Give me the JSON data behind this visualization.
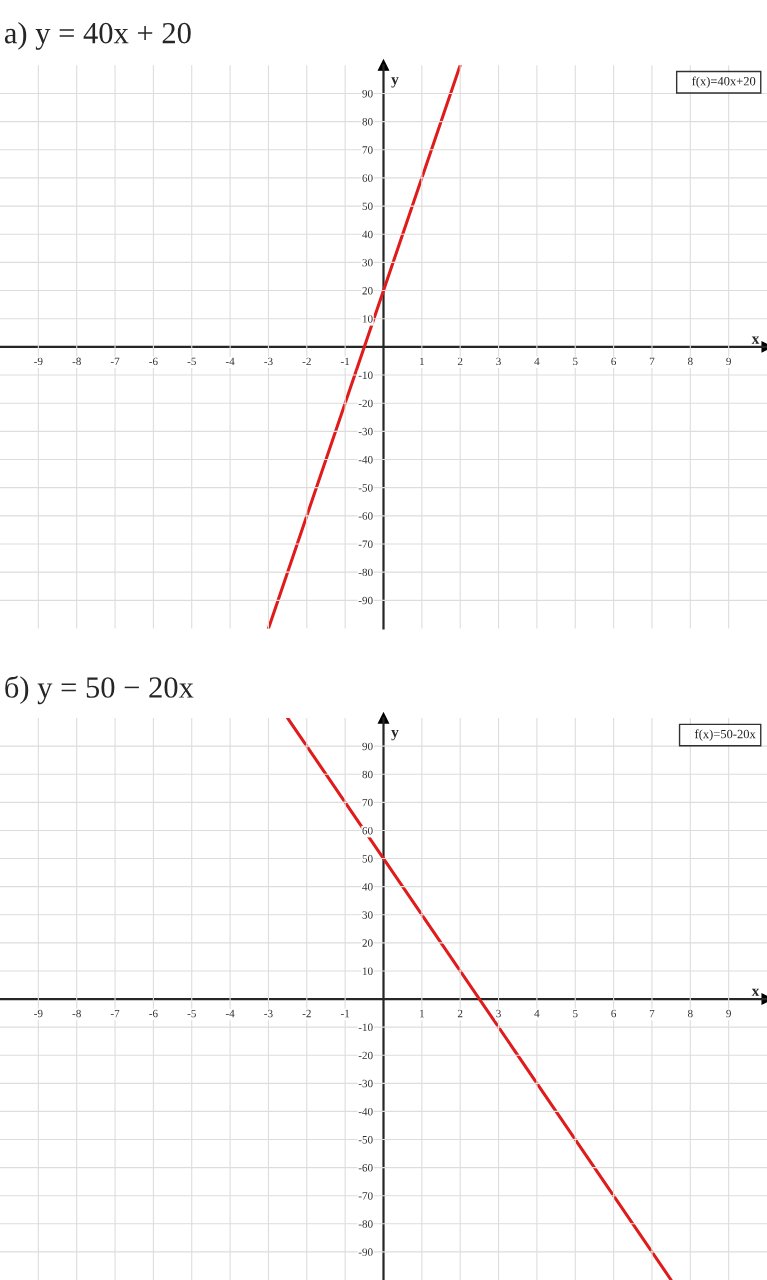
{
  "chart_data": [
    {
      "type": "line",
      "title": "а) y = 40x + 20",
      "xlabel": "x",
      "ylabel": "y",
      "xlim": [
        -10,
        10
      ],
      "ylim": [
        -100,
        100
      ],
      "xticks": [
        -9,
        -8,
        -7,
        -6,
        -5,
        -4,
        -3,
        -2,
        -1,
        1,
        2,
        3,
        4,
        5,
        6,
        7,
        8,
        9
      ],
      "yticks": [
        -90,
        -80,
        -70,
        -60,
        -50,
        -40,
        -30,
        -20,
        -10,
        10,
        20,
        30,
        40,
        50,
        60,
        70,
        80,
        90
      ],
      "grid": true,
      "legend": "top right",
      "series": [
        {
          "name": "f(x)=40x+20",
          "color": "#e01b1b",
          "x": [
            -3,
            2
          ],
          "values": [
            -100,
            100
          ]
        }
      ]
    },
    {
      "type": "line",
      "title": "б) y = 50 − 20x",
      "xlabel": "x",
      "ylabel": "y",
      "xlim": [
        -10,
        10
      ],
      "ylim": [
        -100,
        100
      ],
      "xticks": [
        -9,
        -8,
        -7,
        -6,
        -5,
        -4,
        -3,
        -2,
        -1,
        1,
        2,
        3,
        4,
        5,
        6,
        7,
        8,
        9
      ],
      "yticks": [
        -90,
        -80,
        -70,
        -60,
        -50,
        -40,
        -30,
        -20,
        -10,
        10,
        20,
        30,
        40,
        50,
        60,
        70,
        80,
        90
      ],
      "grid": true,
      "legend": "top right",
      "series": [
        {
          "name": "f(x)=50-20x",
          "color": "#e01b1b",
          "x": [
            -2.5,
            7.5
          ],
          "values": [
            100,
            -100
          ]
        }
      ]
    }
  ]
}
